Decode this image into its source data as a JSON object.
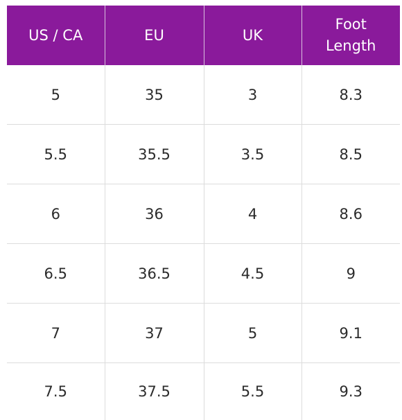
{
  "table": {
    "headers": [
      "US / CA",
      "EU",
      "UK",
      "Foot Length"
    ],
    "header_lines": [
      [
        "US / CA"
      ],
      [
        "EU"
      ],
      [
        "UK"
      ],
      [
        "Foot",
        "Length"
      ]
    ],
    "rows": [
      [
        "5",
        "35",
        "3",
        "8.3"
      ],
      [
        "5.5",
        "35.5",
        "3.5",
        "8.5"
      ],
      [
        "6",
        "36",
        "4",
        "8.6"
      ],
      [
        "6.5",
        "36.5",
        "4.5",
        "9"
      ],
      [
        "7",
        "37",
        "5",
        "9.1"
      ],
      [
        "7.5",
        "37.5",
        "5.5",
        "9.3"
      ]
    ]
  },
  "colors": {
    "header_background": "#8a1a9b",
    "header_text": "#ffffff",
    "cell_text": "#2b2b2b",
    "grid_line": "#dcdcdc"
  }
}
